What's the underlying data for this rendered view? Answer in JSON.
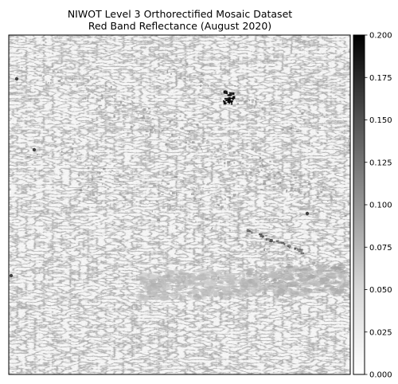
{
  "chart_data": {
    "type": "heatmap",
    "title": "NIWOT Level 3 Orthorectified Mosaic Dataset",
    "subtitle": "Red Band Reflectance (August 2020)",
    "xlabel": "",
    "ylabel": "",
    "colormap": "Greys",
    "axis_ticks_visible": false,
    "colorbar": {
      "range": [
        0.0,
        0.2
      ],
      "ticks": [
        "0.000",
        "0.025",
        "0.050",
        "0.075",
        "0.100",
        "0.125",
        "0.150",
        "0.175",
        "0.200"
      ],
      "tick_values": [
        0.0,
        0.025,
        0.05,
        0.075,
        0.1,
        0.125,
        0.15,
        0.175,
        0.2
      ],
      "placement": "right"
    },
    "features": [
      {
        "region": "upper center",
        "value": 0.2
      },
      {
        "region": "lower center band",
        "value": 0.06
      },
      {
        "region": "lower right patch",
        "value": 0.07
      },
      {
        "region": "right center streak",
        "value": 0.12
      },
      {
        "region": "background",
        "value": 0.015
      }
    ]
  },
  "colors": {
    "low": "#ffffff",
    "high": "#000000",
    "frame": "#000000"
  }
}
